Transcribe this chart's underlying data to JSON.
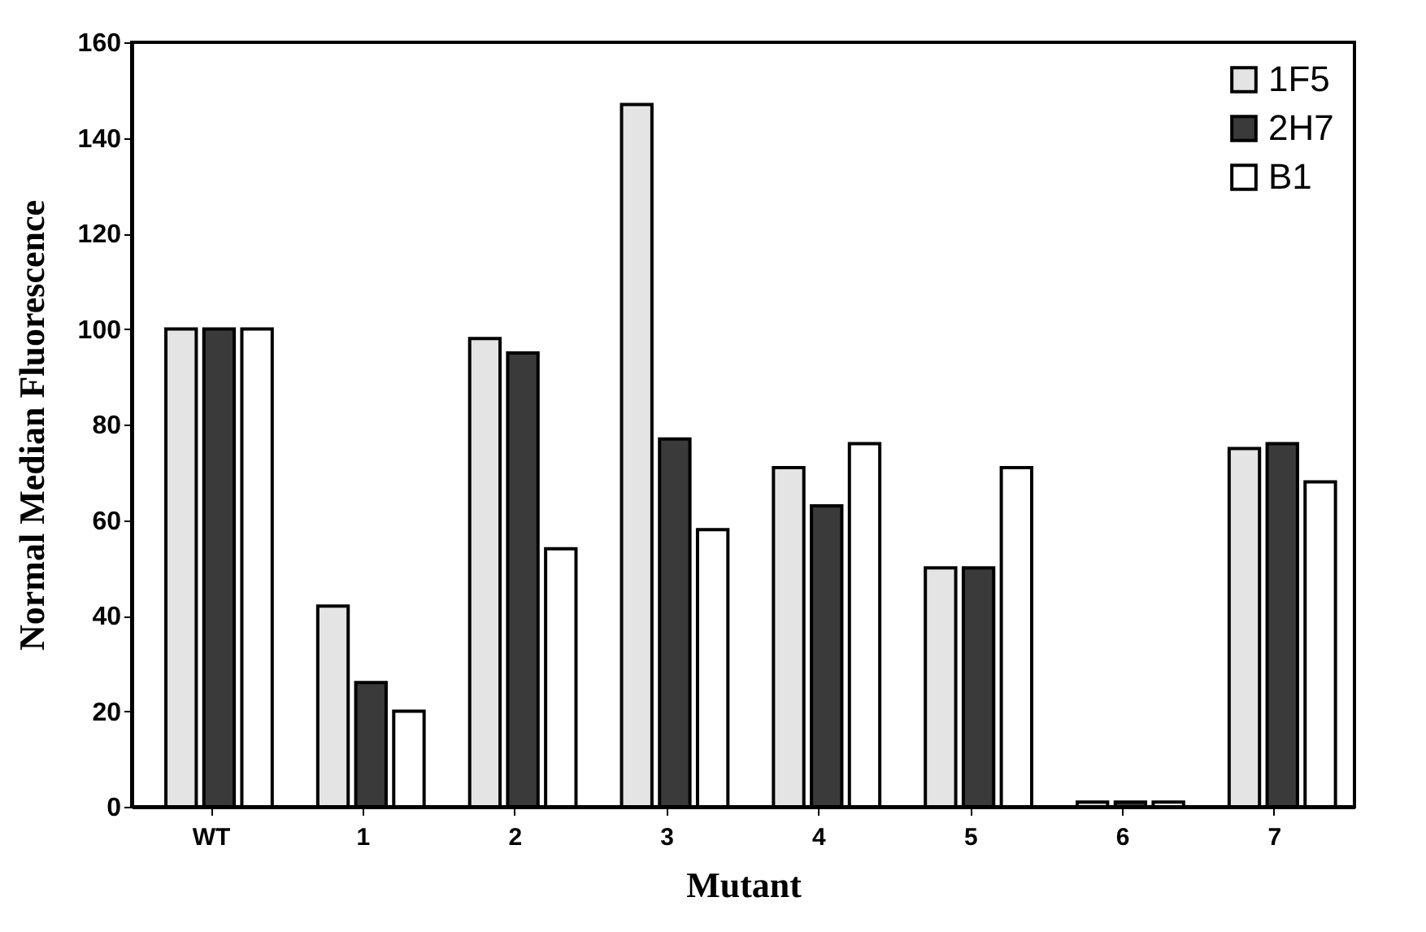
{
  "chart_data": {
    "type": "bar",
    "xlabel": "Mutant",
    "ylabel": "Normal Median Fluorescence",
    "categories": [
      "WT",
      "1",
      "2",
      "3",
      "4",
      "5",
      "6",
      "7"
    ],
    "series": [
      {
        "name": "1F5",
        "color": "#e4e4e4",
        "values": [
          100,
          42,
          98,
          147,
          71,
          50,
          1,
          75
        ]
      },
      {
        "name": "2H7",
        "color": "#3a3a3a",
        "values": [
          100,
          26,
          95,
          77,
          63,
          50,
          1,
          76
        ]
      },
      {
        "name": "B1",
        "color": "#ffffff",
        "values": [
          100,
          20,
          54,
          58,
          76,
          71,
          1,
          68
        ]
      }
    ],
    "ylim": [
      0,
      160
    ],
    "yticks": [
      0,
      20,
      40,
      60,
      80,
      100,
      120,
      140,
      160
    ],
    "grid": false,
    "legend": "top right"
  }
}
